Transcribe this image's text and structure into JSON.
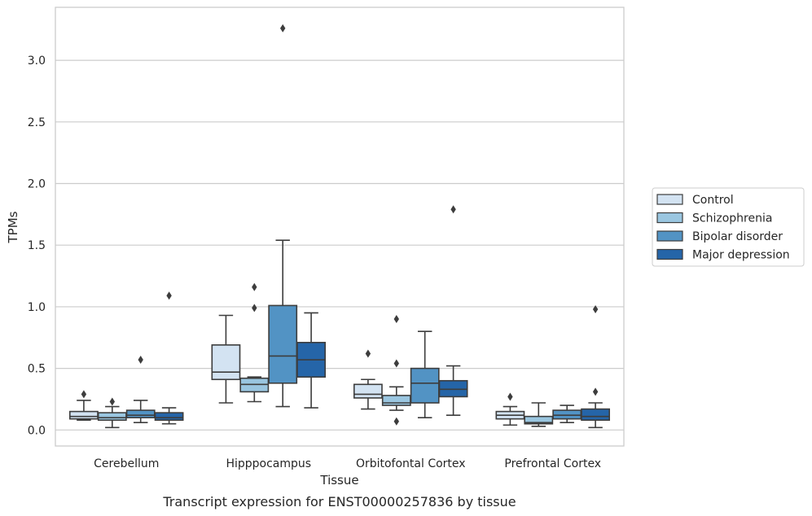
{
  "chart_data": {
    "type": "box",
    "xlabel": "Tissue",
    "ylabel": "TPMs",
    "caption": "Transcript expression for ENST00000257836 by tissue",
    "ylim": [
      -0.13,
      3.43
    ],
    "yticks": [
      0.0,
      0.5,
      1.0,
      1.5,
      2.0,
      2.5,
      3.0
    ],
    "ytick_labels": [
      "0.0",
      "0.5",
      "1.0",
      "1.5",
      "2.0",
      "2.5",
      "3.0"
    ],
    "grid": "horizontal",
    "legend_position": "outside-right",
    "categories": [
      "Cerebellum",
      "Hipppocampus",
      "Orbitofontal Cortex",
      "Prefrontal Cortex"
    ],
    "series": [
      {
        "name": "Control",
        "color": "#d3e3f2",
        "boxes": [
          {
            "whislo": 0.08,
            "q1": 0.09,
            "med": 0.11,
            "q3": 0.15,
            "whishi": 0.24,
            "fliers": [
              0.29
            ]
          },
          {
            "whislo": 0.22,
            "q1": 0.41,
            "med": 0.47,
            "q3": 0.69,
            "whishi": 0.93,
            "fliers": []
          },
          {
            "whislo": 0.17,
            "q1": 0.26,
            "med": 0.29,
            "q3": 0.37,
            "whishi": 0.41,
            "fliers": [
              0.62
            ]
          },
          {
            "whislo": 0.04,
            "q1": 0.09,
            "med": 0.12,
            "q3": 0.15,
            "whishi": 0.19,
            "fliers": [
              0.27
            ]
          }
        ]
      },
      {
        "name": "Schizophrenia",
        "color": "#9ac6e0",
        "boxes": [
          {
            "whislo": 0.02,
            "q1": 0.08,
            "med": 0.1,
            "q3": 0.14,
            "whishi": 0.19,
            "fliers": [
              0.23
            ]
          },
          {
            "whislo": 0.23,
            "q1": 0.31,
            "med": 0.37,
            "q3": 0.42,
            "whishi": 0.43,
            "fliers": [
              0.99,
              1.16
            ]
          },
          {
            "whislo": 0.16,
            "q1": 0.2,
            "med": 0.22,
            "q3": 0.28,
            "whishi": 0.35,
            "fliers": [
              0.07,
              0.54,
              0.9
            ]
          },
          {
            "whislo": 0.03,
            "q1": 0.05,
            "med": 0.06,
            "q3": 0.11,
            "whishi": 0.22,
            "fliers": []
          }
        ]
      },
      {
        "name": "Bipolar disorder",
        "color": "#5293c4",
        "boxes": [
          {
            "whislo": 0.06,
            "q1": 0.1,
            "med": 0.12,
            "q3": 0.16,
            "whishi": 0.24,
            "fliers": [
              0.57
            ]
          },
          {
            "whislo": 0.19,
            "q1": 0.38,
            "med": 0.6,
            "q3": 1.01,
            "whishi": 1.54,
            "fliers": [
              3.26
            ]
          },
          {
            "whislo": 0.1,
            "q1": 0.22,
            "med": 0.38,
            "q3": 0.5,
            "whishi": 0.8,
            "fliers": []
          },
          {
            "whislo": 0.06,
            "q1": 0.09,
            "med": 0.12,
            "q3": 0.16,
            "whishi": 0.2,
            "fliers": []
          }
        ]
      },
      {
        "name": "Major depression",
        "color": "#2565a8",
        "boxes": [
          {
            "whislo": 0.05,
            "q1": 0.08,
            "med": 0.1,
            "q3": 0.14,
            "whishi": 0.18,
            "fliers": [
              1.09
            ]
          },
          {
            "whislo": 0.18,
            "q1": 0.43,
            "med": 0.57,
            "q3": 0.71,
            "whishi": 0.95,
            "fliers": []
          },
          {
            "whislo": 0.12,
            "q1": 0.27,
            "med": 0.33,
            "q3": 0.4,
            "whishi": 0.52,
            "fliers": [
              1.79
            ]
          },
          {
            "whislo": 0.02,
            "q1": 0.08,
            "med": 0.11,
            "q3": 0.17,
            "whishi": 0.22,
            "fliers": [
              0.31,
              0.98
            ]
          }
        ]
      }
    ]
  }
}
